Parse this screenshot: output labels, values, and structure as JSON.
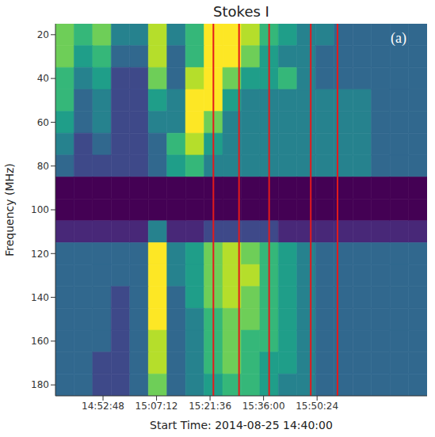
{
  "chart_data": {
    "type": "heatmap",
    "title": "Stokes I",
    "panel_label": "(a)",
    "xlabel": "Start Time: 2014-08-25 14:40:00",
    "ylabel": "Frequency (MHz)",
    "xlim": [
      0,
      100
    ],
    "xticks": [
      {
        "value": 12.8,
        "label": "14:52:48"
      },
      {
        "value": 27.2,
        "label": "15:07:12"
      },
      {
        "value": 41.6,
        "label": "15:21:36"
      },
      {
        "value": 56,
        "label": "15:36:00"
      },
      {
        "value": 70.4,
        "label": "15:50:24"
      }
    ],
    "ylim": [
      15,
      185
    ],
    "yticks": [
      20,
      40,
      60,
      80,
      100,
      120,
      140,
      160,
      180
    ],
    "y_inverted": true,
    "zlim": [
      0,
      9
    ],
    "cells": {
      "x_edges": [
        0,
        5,
        10,
        15,
        20,
        25,
        30,
        35,
        40,
        45,
        50,
        55,
        60,
        65,
        70,
        75,
        80,
        85,
        90,
        95,
        100
      ],
      "y_edges": [
        15,
        25,
        35,
        45,
        55,
        65,
        75,
        85,
        95,
        105,
        115,
        125,
        135,
        145,
        155,
        165,
        175,
        185
      ],
      "values": [
        [
          7,
          6,
          7,
          4,
          4,
          8,
          4,
          6,
          9,
          9,
          8,
          6,
          5,
          4,
          4,
          3,
          3,
          3,
          3,
          3
        ],
        [
          7,
          5,
          6,
          3,
          3,
          8,
          3,
          6,
          9,
          9,
          7,
          5,
          4,
          4,
          3,
          3,
          3,
          3,
          3,
          3
        ],
        [
          6,
          4,
          5,
          2,
          2,
          7,
          3,
          8,
          9,
          7,
          5,
          5,
          6,
          4,
          3,
          3,
          3,
          3,
          3,
          3
        ],
        [
          6,
          3,
          4,
          2,
          2,
          5,
          4,
          9,
          9,
          5,
          4,
          4,
          4,
          4,
          4,
          4,
          4,
          3,
          3,
          3
        ],
        [
          5,
          3,
          4,
          2,
          2,
          4,
          4,
          9,
          7,
          4,
          4,
          4,
          4,
          4,
          4,
          4,
          4,
          3,
          3,
          3
        ],
        [
          4,
          2,
          3,
          2,
          2,
          3,
          6,
          8,
          5,
          4,
          4,
          4,
          4,
          4,
          4,
          4,
          4,
          3,
          3,
          3
        ],
        [
          3,
          2,
          2,
          2,
          2,
          3,
          5,
          6,
          4,
          4,
          4,
          4,
          4,
          4,
          4,
          4,
          4,
          3,
          3,
          3
        ],
        [
          0,
          0,
          0,
          0,
          0,
          0,
          0,
          0,
          0,
          0,
          0,
          0,
          0,
          0,
          0,
          0,
          0,
          0,
          0,
          0
        ],
        [
          0,
          0,
          0,
          0,
          0,
          0,
          0,
          0,
          0,
          0,
          0,
          0,
          0,
          0,
          0,
          0,
          0,
          0,
          0,
          0
        ],
        [
          1,
          1,
          1,
          1,
          1,
          4,
          1,
          1,
          2,
          2,
          2,
          2,
          1,
          1,
          1,
          1,
          1,
          1,
          1,
          1
        ],
        [
          3,
          3,
          3,
          3,
          3,
          9,
          4,
          5,
          7,
          8,
          7,
          6,
          5,
          4,
          3,
          3,
          3,
          3,
          3,
          3
        ],
        [
          3,
          3,
          3,
          3,
          3,
          9,
          4,
          5,
          7,
          8,
          8,
          6,
          5,
          4,
          3,
          3,
          3,
          3,
          3,
          3
        ],
        [
          3,
          3,
          3,
          2,
          3,
          9,
          3,
          5,
          7,
          8,
          7,
          6,
          5,
          4,
          3,
          3,
          3,
          3,
          3,
          3
        ],
        [
          3,
          3,
          3,
          2,
          3,
          9,
          3,
          4,
          6,
          7,
          7,
          6,
          5,
          4,
          3,
          3,
          3,
          3,
          3,
          3
        ],
        [
          3,
          3,
          3,
          2,
          3,
          8,
          3,
          4,
          6,
          7,
          6,
          6,
          5,
          4,
          3,
          3,
          3,
          3,
          3,
          3
        ],
        [
          3,
          3,
          2,
          2,
          3,
          8,
          3,
          4,
          6,
          7,
          6,
          5,
          5,
          4,
          3,
          3,
          3,
          3,
          3,
          3
        ],
        [
          3,
          3,
          2,
          2,
          3,
          7,
          3,
          4,
          5,
          6,
          6,
          5,
          4,
          4,
          3,
          3,
          3,
          3,
          3,
          3
        ]
      ]
    },
    "vertical_lines": {
      "x": [
        42.5,
        49.4,
        57.5,
        68.7,
        75.9
      ],
      "color": "#e41a1c"
    }
  }
}
